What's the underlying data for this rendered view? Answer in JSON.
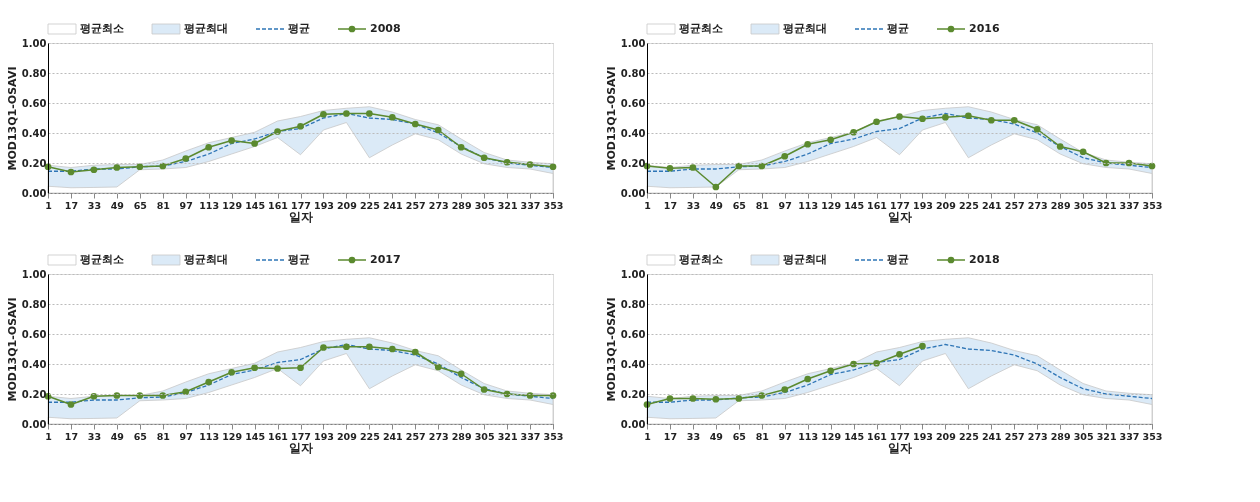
{
  "chart_data": [
    {
      "type": "line",
      "xlabel": "일자",
      "ylabel": "MOD13Q1-OSAVI",
      "legend": "top left",
      "grid": "y",
      "ylim": [
        0,
        1
      ],
      "yticks": [
        {
          "value": 0,
          "label": "0.00"
        },
        {
          "value": 0.2,
          "label": "0.20"
        },
        {
          "value": 0.4,
          "label": "0.40"
        },
        {
          "value": 0.6,
          "label": "0.60"
        },
        {
          "value": 0.8,
          "label": "0.80"
        },
        {
          "value": 1,
          "label": "1.00"
        }
      ],
      "categories": [
        "1",
        "17",
        "33",
        "49",
        "65",
        "81",
        "97",
        "113",
        "129",
        "145",
        "161",
        "177",
        "193",
        "209",
        "225",
        "241",
        "257",
        "273",
        "289",
        "305",
        "321",
        "337",
        "353"
      ],
      "series": [
        {
          "name": "평균최소",
          "type": "area",
          "color": "#ffffff",
          "values": [
            0.045,
            0.035,
            0.037,
            0.04,
            0.155,
            0.16,
            0.17,
            0.21,
            0.26,
            0.31,
            0.37,
            0.255,
            0.42,
            0.47,
            0.235,
            0.32,
            0.395,
            0.355,
            0.26,
            0.195,
            0.17,
            0.16,
            0.13
          ]
        },
        {
          "name": "평균최대",
          "type": "area",
          "color": "#dbeaf7",
          "values": [
            0.185,
            0.17,
            0.185,
            0.19,
            0.19,
            0.22,
            0.28,
            0.335,
            0.37,
            0.405,
            0.48,
            0.51,
            0.55,
            0.565,
            0.575,
            0.54,
            0.49,
            0.455,
            0.36,
            0.27,
            0.22,
            0.205,
            0.195
          ]
        },
        {
          "name": "평균",
          "type": "line",
          "color": "#2e75b6",
          "line_style": "dashed",
          "marker": "none",
          "values": [
            0.145,
            0.145,
            0.16,
            0.16,
            0.175,
            0.18,
            0.21,
            0.26,
            0.33,
            0.36,
            0.41,
            0.43,
            0.5,
            0.53,
            0.5,
            0.49,
            0.46,
            0.4,
            0.31,
            0.235,
            0.2,
            0.185,
            0.17
          ]
        },
        {
          "name": "2008",
          "type": "line",
          "color": "#5b8a2f",
          "line_style": "solid",
          "marker": "circle",
          "values": [
            0.175,
            0.14,
            0.155,
            0.17,
            0.175,
            0.18,
            0.23,
            0.305,
            0.35,
            0.33,
            0.41,
            0.445,
            0.525,
            0.53,
            0.53,
            0.505,
            0.46,
            0.42,
            0.305,
            0.235,
            0.205,
            0.19,
            0.175
          ]
        }
      ]
    },
    {
      "type": "line",
      "xlabel": "일자",
      "ylabel": "MOD13Q1-OSAVI",
      "legend": "top left",
      "grid": "y",
      "ylim": [
        0,
        1
      ],
      "yticks": [
        {
          "value": 0,
          "label": "0.00"
        },
        {
          "value": 0.2,
          "label": "0.20"
        },
        {
          "value": 0.4,
          "label": "0.40"
        },
        {
          "value": 0.6,
          "label": "0.60"
        },
        {
          "value": 0.8,
          "label": "0.80"
        },
        {
          "value": 1,
          "label": "1.00"
        }
      ],
      "categories": [
        "1",
        "17",
        "33",
        "49",
        "65",
        "81",
        "97",
        "113",
        "129",
        "145",
        "161",
        "177",
        "193",
        "209",
        "225",
        "241",
        "257",
        "273",
        "289",
        "305",
        "321",
        "337",
        "353"
      ],
      "series": [
        {
          "name": "평균최소",
          "type": "area",
          "color": "#ffffff",
          "values": [
            0.045,
            0.035,
            0.037,
            0.04,
            0.155,
            0.16,
            0.17,
            0.21,
            0.26,
            0.31,
            0.37,
            0.255,
            0.42,
            0.47,
            0.235,
            0.32,
            0.395,
            0.355,
            0.26,
            0.195,
            0.17,
            0.16,
            0.13
          ]
        },
        {
          "name": "평균최대",
          "type": "area",
          "color": "#dbeaf7",
          "values": [
            0.185,
            0.17,
            0.185,
            0.19,
            0.19,
            0.22,
            0.28,
            0.335,
            0.37,
            0.405,
            0.48,
            0.51,
            0.55,
            0.565,
            0.575,
            0.54,
            0.49,
            0.455,
            0.36,
            0.27,
            0.22,
            0.205,
            0.195
          ]
        },
        {
          "name": "평균",
          "type": "line",
          "color": "#2e75b6",
          "line_style": "dashed",
          "marker": "none",
          "values": [
            0.145,
            0.145,
            0.16,
            0.16,
            0.175,
            0.18,
            0.21,
            0.26,
            0.33,
            0.36,
            0.41,
            0.43,
            0.5,
            0.53,
            0.5,
            0.49,
            0.46,
            0.4,
            0.31,
            0.235,
            0.2,
            0.185,
            0.17
          ]
        },
        {
          "name": "2016",
          "type": "line",
          "color": "#5b8a2f",
          "line_style": "solid",
          "marker": "circle",
          "values": [
            0.18,
            0.165,
            0.17,
            0.04,
            0.18,
            0.18,
            0.245,
            0.325,
            0.355,
            0.405,
            0.475,
            0.51,
            0.495,
            0.505,
            0.515,
            0.485,
            0.485,
            0.425,
            0.31,
            0.275,
            0.2,
            0.2,
            0.18
          ]
        }
      ]
    },
    {
      "type": "line",
      "xlabel": "일자",
      "ylabel": "MOD13Q1-OSAVI",
      "legend": "top left",
      "grid": "y",
      "ylim": [
        0,
        1
      ],
      "yticks": [
        {
          "value": 0,
          "label": "0.00"
        },
        {
          "value": 0.2,
          "label": "0.20"
        },
        {
          "value": 0.4,
          "label": "0.40"
        },
        {
          "value": 0.6,
          "label": "0.60"
        },
        {
          "value": 0.8,
          "label": "0.80"
        },
        {
          "value": 1,
          "label": "1.00"
        }
      ],
      "categories": [
        "1",
        "17",
        "33",
        "49",
        "65",
        "81",
        "97",
        "113",
        "129",
        "145",
        "161",
        "177",
        "193",
        "209",
        "225",
        "241",
        "257",
        "273",
        "289",
        "305",
        "321",
        "337",
        "353"
      ],
      "series": [
        {
          "name": "평균최소",
          "type": "area",
          "color": "#ffffff",
          "values": [
            0.045,
            0.035,
            0.037,
            0.04,
            0.155,
            0.16,
            0.17,
            0.21,
            0.26,
            0.31,
            0.37,
            0.255,
            0.42,
            0.47,
            0.235,
            0.32,
            0.395,
            0.355,
            0.26,
            0.195,
            0.17,
            0.16,
            0.13
          ]
        },
        {
          "name": "평균최대",
          "type": "area",
          "color": "#dbeaf7",
          "values": [
            0.185,
            0.17,
            0.185,
            0.19,
            0.19,
            0.22,
            0.28,
            0.335,
            0.37,
            0.405,
            0.48,
            0.51,
            0.55,
            0.565,
            0.575,
            0.54,
            0.49,
            0.455,
            0.36,
            0.27,
            0.22,
            0.205,
            0.195
          ]
        },
        {
          "name": "평균",
          "type": "line",
          "color": "#2e75b6",
          "line_style": "dashed",
          "marker": "none",
          "values": [
            0.145,
            0.145,
            0.16,
            0.16,
            0.175,
            0.18,
            0.21,
            0.26,
            0.33,
            0.36,
            0.41,
            0.43,
            0.5,
            0.53,
            0.5,
            0.49,
            0.46,
            0.4,
            0.31,
            0.235,
            0.2,
            0.185,
            0.17
          ]
        },
        {
          "name": "2017",
          "type": "line",
          "color": "#5b8a2f",
          "line_style": "solid",
          "marker": "circle",
          "values": [
            0.185,
            0.13,
            0.185,
            0.19,
            0.19,
            0.19,
            0.215,
            0.28,
            0.345,
            0.375,
            0.37,
            0.375,
            0.51,
            0.515,
            0.515,
            0.5,
            0.48,
            0.38,
            0.335,
            0.23,
            0.2,
            0.19,
            0.19
          ]
        }
      ]
    },
    {
      "type": "line",
      "xlabel": "일자",
      "ylabel": "MOD13Q1-OSAVI",
      "legend": "top left",
      "grid": "y",
      "ylim": [
        0,
        1
      ],
      "yticks": [
        {
          "value": 0,
          "label": "0.00"
        },
        {
          "value": 0.2,
          "label": "0.20"
        },
        {
          "value": 0.4,
          "label": "0.40"
        },
        {
          "value": 0.6,
          "label": "0.60"
        },
        {
          "value": 0.8,
          "label": "0.80"
        },
        {
          "value": 1,
          "label": "1.00"
        }
      ],
      "categories": [
        "1",
        "17",
        "33",
        "49",
        "65",
        "81",
        "97",
        "113",
        "129",
        "145",
        "161",
        "177",
        "193",
        "209",
        "225",
        "241",
        "257",
        "273",
        "289",
        "305",
        "321",
        "337",
        "353"
      ],
      "series": [
        {
          "name": "평균최소",
          "type": "area",
          "color": "#ffffff",
          "values": [
            0.045,
            0.035,
            0.037,
            0.04,
            0.155,
            0.16,
            0.17,
            0.21,
            0.26,
            0.31,
            0.37,
            0.255,
            0.42,
            0.47,
            0.235,
            0.32,
            0.395,
            0.355,
            0.26,
            0.195,
            0.17,
            0.16,
            0.13
          ]
        },
        {
          "name": "평균최대",
          "type": "area",
          "color": "#dbeaf7",
          "values": [
            0.185,
            0.17,
            0.185,
            0.19,
            0.19,
            0.22,
            0.28,
            0.335,
            0.37,
            0.405,
            0.48,
            0.51,
            0.55,
            0.565,
            0.575,
            0.54,
            0.49,
            0.455,
            0.36,
            0.27,
            0.22,
            0.205,
            0.195
          ]
        },
        {
          "name": "평균",
          "type": "line",
          "color": "#2e75b6",
          "line_style": "dashed",
          "marker": "none",
          "values": [
            0.145,
            0.145,
            0.16,
            0.16,
            0.175,
            0.18,
            0.21,
            0.26,
            0.33,
            0.36,
            0.41,
            0.43,
            0.5,
            0.53,
            0.5,
            0.49,
            0.46,
            0.4,
            0.31,
            0.235,
            0.2,
            0.185,
            0.17
          ]
        },
        {
          "name": "2018",
          "type": "line",
          "color": "#5b8a2f",
          "line_style": "solid",
          "marker": "circle",
          "values": [
            0.13,
            0.17,
            0.17,
            0.165,
            0.17,
            0.19,
            0.23,
            0.3,
            0.355,
            0.4,
            0.405,
            0.465,
            0.52,
            null,
            null,
            null,
            null,
            null,
            null,
            null,
            null,
            null,
            null
          ]
        }
      ]
    }
  ]
}
